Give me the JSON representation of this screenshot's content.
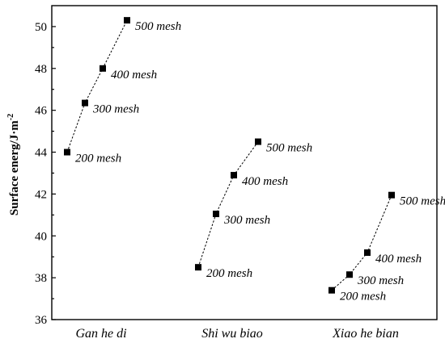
{
  "chart_data": {
    "type": "scatter",
    "title": "",
    "xlabel": "",
    "ylabel": "Surface energ/J·m",
    "ylabel_superscript": "-2",
    "ylim": [
      36,
      51
    ],
    "yticks": [
      36,
      38,
      40,
      42,
      44,
      46,
      48,
      50
    ],
    "grid": false,
    "legend": "none",
    "categories": [
      "Gan he di",
      "Shi wu biao",
      "Xiao he bian"
    ],
    "groups": [
      {
        "category": "Gan he di",
        "points": [
          {
            "label": "200 mesh",
            "value": 44.0
          },
          {
            "label": "300 mesh",
            "value": 46.35
          },
          {
            "label": "400 mesh",
            "value": 48.0
          },
          {
            "label": "500 mesh",
            "value": 50.3
          }
        ]
      },
      {
        "category": "Shi wu biao",
        "points": [
          {
            "label": "200 mesh",
            "value": 38.5
          },
          {
            "label": "300 mesh",
            "value": 41.05
          },
          {
            "label": "400 mesh",
            "value": 42.9
          },
          {
            "label": "500 mesh",
            "value": 44.5
          }
        ]
      },
      {
        "category": "Xiao he bian",
        "points": [
          {
            "label": "200 mesh",
            "value": 37.4
          },
          {
            "label": "300 mesh",
            "value": 38.15
          },
          {
            "label": "400 mesh",
            "value": 39.2
          },
          {
            "label": "500 mesh",
            "value": 41.95
          }
        ]
      }
    ]
  }
}
